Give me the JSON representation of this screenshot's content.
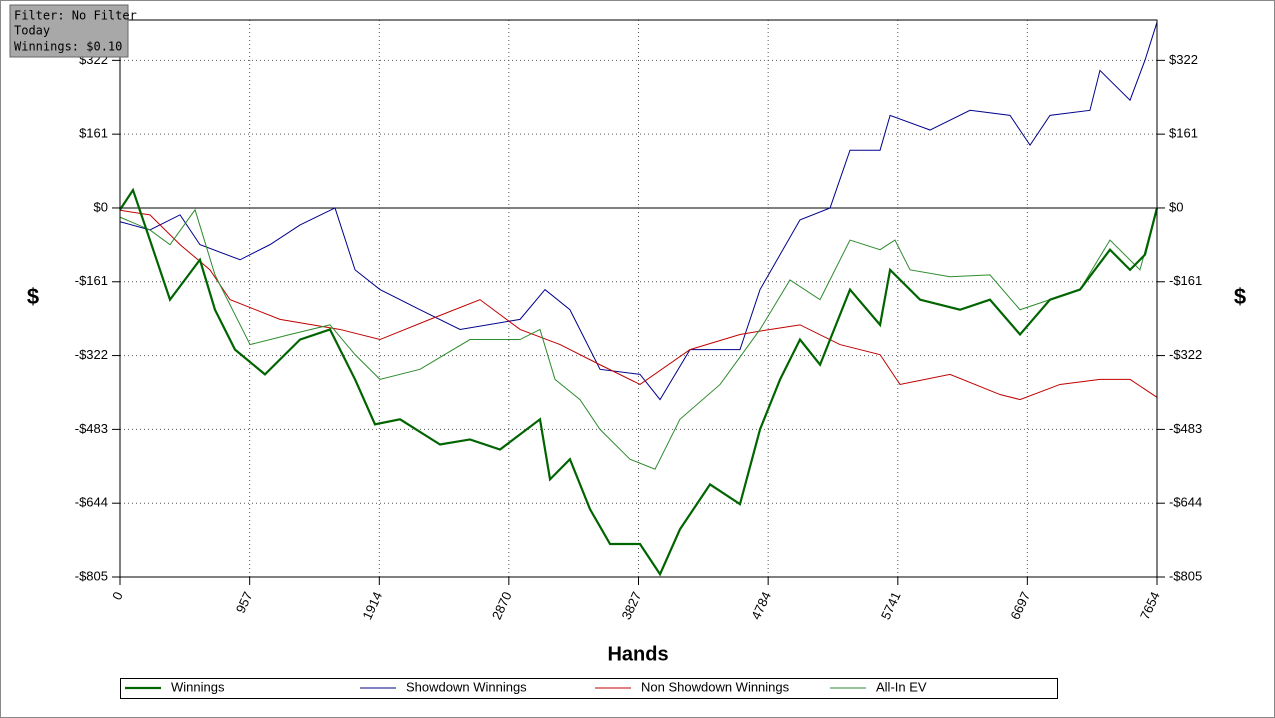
{
  "chart_data": {
    "type": "line",
    "info": [
      "Filter: No Filter",
      "Today",
      "Winnings: $0.10"
    ],
    "xlabel": "Hands",
    "ylabel": "$",
    "xlim": [
      0,
      7654
    ],
    "xticks": [
      0,
      957,
      1914,
      2870,
      3827,
      4784,
      5741,
      6697,
      7654
    ],
    "ylim": [
      -805,
      410
    ],
    "yticks": [
      {
        "value": -805,
        "label": "-$805"
      },
      {
        "value": -644,
        "label": "-$644"
      },
      {
        "value": -483,
        "label": "-$483"
      },
      {
        "value": -322,
        "label": "-$322"
      },
      {
        "value": -161,
        "label": "-$161"
      },
      {
        "value": 0,
        "label": "$0"
      },
      {
        "value": 161,
        "label": "$161"
      },
      {
        "value": 322,
        "label": "$322"
      }
    ],
    "grid": true,
    "series": [
      {
        "name": "Winnings",
        "color": "#006400",
        "width": 2.2,
        "x": [
          0,
          96,
          221,
          369,
          590,
          701,
          849,
          1070,
          1329,
          1550,
          1735,
          1882,
          2067,
          2362,
          2583,
          2805,
          3100,
          3174,
          3321,
          3469,
          3617,
          3838,
          3986,
          4133,
          4355,
          4576,
          4724,
          4872,
          5019,
          5167,
          5388,
          5610,
          5684,
          5905,
          6200,
          6421,
          6643,
          6864,
          7086,
          7307,
          7455,
          7565,
          7654
        ],
        "values": [
          -4,
          39,
          -70,
          -200,
          -113,
          -222,
          -309,
          -363,
          -287,
          -265,
          -374,
          -472,
          -461,
          -516,
          -505,
          -527,
          -461,
          -592,
          -548,
          -657,
          -733,
          -733,
          -799,
          -701,
          -603,
          -646,
          -483,
          -374,
          -287,
          -342,
          -178,
          -255,
          -135,
          -200,
          -222,
          -200,
          -276,
          -200,
          -178,
          -91,
          -135,
          -102,
          0
        ]
      },
      {
        "name": "Showdown Winnings",
        "color": "#00008b",
        "width": 1,
        "x": [
          0,
          221,
          443,
          590,
          886,
          1107,
          1329,
          1587,
          1735,
          1919,
          2214,
          2510,
          2953,
          3137,
          3321,
          3543,
          3838,
          3986,
          4207,
          4576,
          4724,
          5019,
          5241,
          5388,
          5610,
          5684,
          5979,
          6274,
          6569,
          6717,
          6864,
          7159,
          7233,
          7455,
          7565,
          7654
        ],
        "values": [
          -30,
          -48,
          -15,
          -80,
          -113,
          -80,
          -37,
          0,
          -135,
          -178,
          -222,
          -265,
          -243,
          -178,
          -222,
          -352,
          -363,
          -418,
          -309,
          -309,
          -178,
          -26,
          0,
          126,
          126,
          202,
          170,
          213,
          202,
          137,
          202,
          213,
          300,
          235,
          322,
          405
        ]
      },
      {
        "name": "Non Showdown Winnings",
        "color": "#c00000",
        "width": 1,
        "x": [
          0,
          221,
          443,
          664,
          812,
          1181,
          1624,
          1919,
          2288,
          2657,
          2953,
          3248,
          3543,
          3838,
          4207,
          4576,
          4798,
          5019,
          5314,
          5610,
          5757,
          6126,
          6495,
          6643,
          6938,
          7233,
          7455,
          7654
        ],
        "values": [
          -5,
          -15,
          -80,
          -135,
          -200,
          -243,
          -265,
          -287,
          -243,
          -200,
          -265,
          -298,
          -342,
          -385,
          -309,
          -276,
          -265,
          -255,
          -298,
          -320,
          -385,
          -363,
          -407,
          -418,
          -385,
          -374,
          -374,
          -413
        ]
      },
      {
        "name": "All-In EV",
        "color": "#2e8b2e",
        "width": 1,
        "x": [
          0,
          221,
          369,
          554,
          701,
          960,
          1255,
          1550,
          1735,
          1919,
          2214,
          2583,
          2953,
          3100,
          3211,
          3395,
          3543,
          3764,
          3949,
          4133,
          4429,
          4724,
          4945,
          5167,
          5388,
          5610,
          5720,
          5831,
          6126,
          6421,
          6643,
          6864,
          7086,
          7307,
          7528,
          7654
        ],
        "values": [
          -20,
          -48,
          -80,
          -4,
          -146,
          -298,
          -276,
          -255,
          -320,
          -374,
          -352,
          -287,
          -287,
          -265,
          -374,
          -418,
          -483,
          -548,
          -570,
          -461,
          -385,
          -265,
          -157,
          -200,
          -70,
          -91,
          -70,
          -135,
          -150,
          -146,
          -222,
          -200,
          -178,
          -70,
          -135,
          0
        ]
      }
    ]
  }
}
